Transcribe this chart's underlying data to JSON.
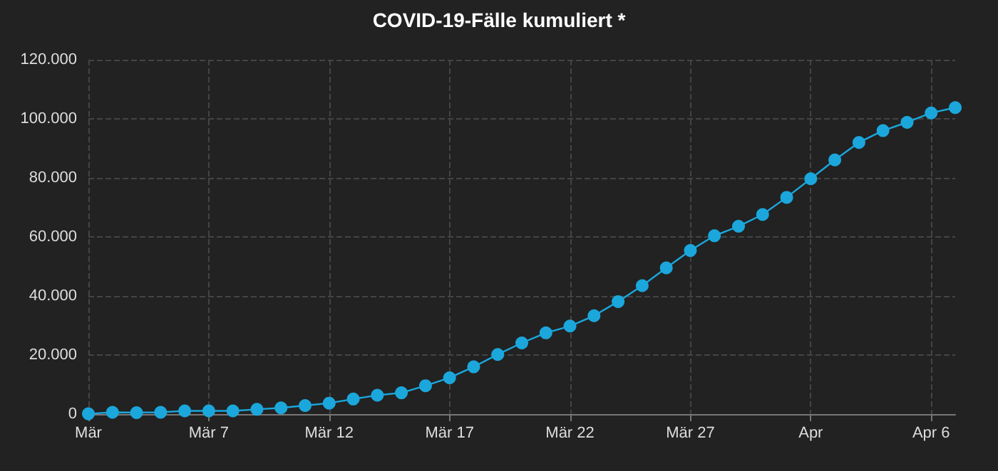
{
  "chart_data": {
    "type": "line",
    "title": "COVID-19-Fälle kumuliert *",
    "x": [
      "--03-02",
      "--03-03",
      "--03-04",
      "--03-05",
      "--03-06",
      "--03-07",
      "--03-08",
      "--03-09",
      "--03-10",
      "--03-11",
      "--03-12",
      "--03-13",
      "--03-14",
      "--03-15",
      "--03-16",
      "--03-17",
      "--03-18",
      "--03-19",
      "--03-20",
      "--03-21",
      "--03-22",
      "--03-23",
      "--03-24",
      "--03-25",
      "--03-26",
      "--03-27",
      "--03-28",
      "--03-29",
      "--03-30",
      "--03-31",
      "--04-01",
      "--04-02",
      "--04-03",
      "--04-04",
      "--04-05",
      "--04-06",
      "--04-07"
    ],
    "series": [
      {
        "color": "#1ba7dc",
        "values": [
          100,
          600,
          500,
          600,
          1100,
          1100,
          1100,
          1600,
          2100,
          2900,
          3700,
          5100,
          6400,
          7200,
          9600,
          12300,
          16000,
          20200,
          24100,
          27500,
          29800,
          33300,
          38100,
          43500,
          49500,
          55400,
          60400,
          63600,
          67600,
          73400,
          79700,
          86100,
          92000,
          96000,
          98800,
          102000,
          103800
        ]
      }
    ],
    "xlim": [
      "--03-02",
      "--04-07"
    ],
    "xticks": [
      {
        "value": "--03-02",
        "label": "Mär"
      },
      {
        "value": "--03-07",
        "label": "Mär 7"
      },
      {
        "value": "--03-12",
        "label": "Mär 12"
      },
      {
        "value": "--03-17",
        "label": "Mär 17"
      },
      {
        "value": "--03-22",
        "label": "Mär 22"
      },
      {
        "value": "--03-27",
        "label": "Mär 27"
      },
      {
        "value": "--04-01",
        "label": "Apr"
      },
      {
        "value": "--04-06",
        "label": "Apr 6"
      }
    ],
    "ylim": [
      0,
      120000
    ],
    "yticks": [
      {
        "value": 0,
        "label": "0"
      },
      {
        "value": 20000,
        "label": "20.000"
      },
      {
        "value": 40000,
        "label": "40.000"
      },
      {
        "value": 60000,
        "label": "60.000"
      },
      {
        "value": 80000,
        "label": "80.000"
      },
      {
        "value": 100000,
        "label": "100.000"
      },
      {
        "value": 120000,
        "label": "120.000"
      }
    ],
    "grid": true,
    "marker": "circle",
    "line_style": "solid"
  }
}
